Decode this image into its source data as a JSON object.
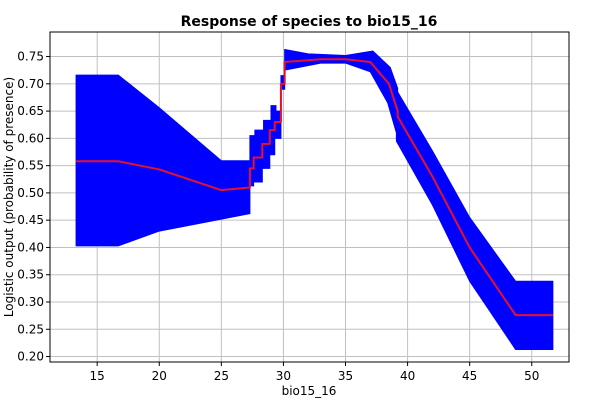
{
  "chart_data": {
    "type": "area",
    "title": "Response of species to bio15_16",
    "xlabel": "bio15_16",
    "ylabel": "Logistic output (probability of presence)",
    "xlim": [
      11.2,
      53.0
    ],
    "ylim": [
      0.19,
      0.795
    ],
    "x_ticks": [
      15,
      20,
      25,
      30,
      35,
      40,
      45,
      50
    ],
    "y_ticks": [
      0.2,
      0.25,
      0.3,
      0.35,
      0.4,
      0.45,
      0.5,
      0.55,
      0.6,
      0.65,
      0.7,
      0.75
    ],
    "grid": true,
    "colors": {
      "band": "#0000ff",
      "mean": "#e8102a",
      "grid": "#c0c0c0"
    },
    "series": [
      {
        "role": "mean",
        "x": [
          13.3,
          16.7,
          20.0,
          25.0,
          27.3,
          27.3,
          27.6,
          27.6,
          28.3,
          28.3,
          28.9,
          28.9,
          29.3,
          29.3,
          29.8,
          29.8,
          30.1,
          30.1,
          33.0,
          35.0,
          37.0,
          38.5,
          39.2,
          39.2,
          42.0,
          45.0,
          48.7,
          51.7
        ],
        "y": [
          0.558,
          0.558,
          0.543,
          0.505,
          0.51,
          0.545,
          0.545,
          0.565,
          0.565,
          0.59,
          0.59,
          0.615,
          0.615,
          0.63,
          0.63,
          0.7,
          0.7,
          0.74,
          0.745,
          0.745,
          0.74,
          0.7,
          0.65,
          0.64,
          0.53,
          0.4,
          0.276,
          0.276
        ]
      },
      {
        "role": "upper",
        "x": [
          13.3,
          16.7,
          20.0,
          25.0,
          27.3,
          27.3,
          27.7,
          27.7,
          28.4,
          28.4,
          29.0,
          29.0,
          29.4,
          29.4,
          29.8,
          29.8,
          30.1,
          30.1,
          32.0,
          35.0,
          37.2,
          38.6,
          39.2,
          39.2,
          42.0,
          45.0,
          48.7,
          51.7
        ],
        "y": [
          0.716,
          0.716,
          0.656,
          0.559,
          0.559,
          0.605,
          0.605,
          0.615,
          0.615,
          0.633,
          0.633,
          0.66,
          0.66,
          0.65,
          0.65,
          0.715,
          0.715,
          0.763,
          0.755,
          0.752,
          0.76,
          0.73,
          0.692,
          0.685,
          0.577,
          0.455,
          0.338,
          0.338
        ]
      },
      {
        "role": "lower",
        "x": [
          13.3,
          16.7,
          20.0,
          25.0,
          27.3,
          27.3,
          27.6,
          27.6,
          28.3,
          28.3,
          28.9,
          28.9,
          29.3,
          29.3,
          29.8,
          29.8,
          30.1,
          30.1,
          33.0,
          35.0,
          37.0,
          38.4,
          39.1,
          39.1,
          42.0,
          45.0,
          48.7,
          51.7
        ],
        "y": [
          0.403,
          0.403,
          0.43,
          0.452,
          0.462,
          0.513,
          0.513,
          0.52,
          0.52,
          0.545,
          0.545,
          0.57,
          0.57,
          0.6,
          0.6,
          0.69,
          0.69,
          0.725,
          0.738,
          0.738,
          0.722,
          0.665,
          0.61,
          0.595,
          0.478,
          0.338,
          0.213,
          0.213
        ]
      }
    ]
  }
}
